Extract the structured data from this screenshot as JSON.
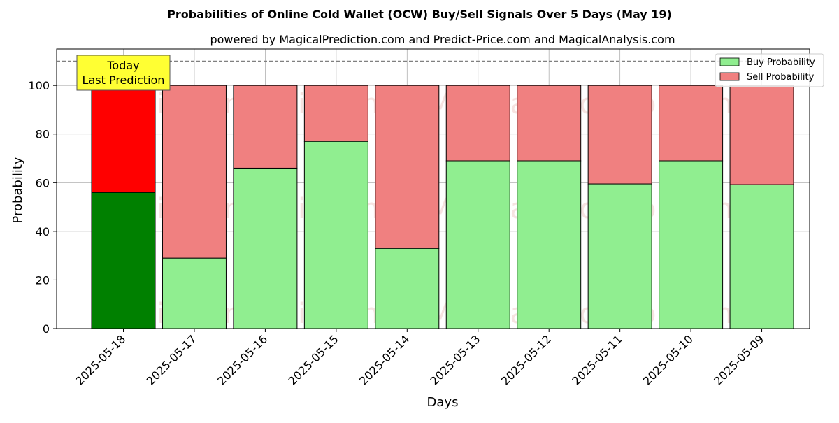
{
  "chart_data": {
    "type": "bar",
    "title": "Probabilities of Online Cold Wallet (OCW) Buy/Sell Signals Over 5 Days (May 19)",
    "subtitle": "powered by MagicalPrediction.com and Predict-Price.com and MagicalAnalysis.com",
    "xlabel": "Days",
    "ylabel": "Probability",
    "ylim": [
      0,
      115
    ],
    "yticks": [
      0,
      20,
      40,
      60,
      80,
      100
    ],
    "grid": true,
    "stacked": true,
    "categories": [
      "2025-05-18",
      "2025-05-17",
      "2025-05-16",
      "2025-05-15",
      "2025-05-14",
      "2025-05-13",
      "2025-05-12",
      "2025-05-11",
      "2025-05-10",
      "2025-05-09"
    ],
    "series": [
      {
        "name": "Buy Probability",
        "values": [
          56,
          29,
          66,
          77,
          33,
          69,
          69,
          59.5,
          69,
          59.2
        ]
      },
      {
        "name": "Sell Probability",
        "values": [
          44,
          71,
          34,
          23,
          67,
          31,
          31,
          40.5,
          31,
          40.8
        ]
      }
    ],
    "reference_line": {
      "y": 110,
      "style": "dashed"
    },
    "annotation": {
      "lines": [
        "Today",
        "Last Prediction"
      ]
    },
    "legend_position": "top-right",
    "watermarks": [
      "MagicalAnalysis.com",
      "MagicalPrediction.com"
    ],
    "colors": {
      "buy_today": "#008000",
      "sell_today": "#ff0000",
      "buy": "#90ee90",
      "sell": "#f08080",
      "annotation_bg": "#ffff33"
    }
  }
}
